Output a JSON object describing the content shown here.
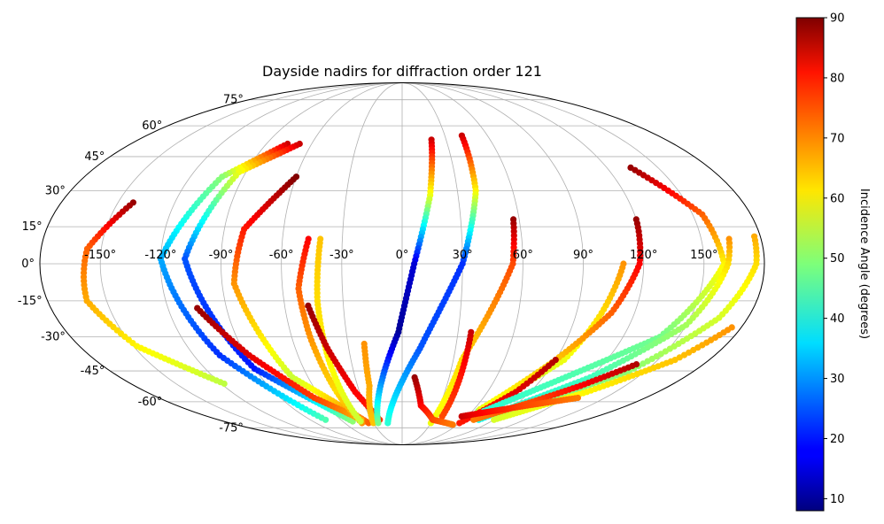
{
  "chart_data": {
    "type": "scatter",
    "projection": "mollweide",
    "title": "Dayside nadirs for diffraction order 121",
    "xlabel": "",
    "ylabel": "",
    "grid": true,
    "lon_ticks": [
      -150,
      -120,
      -90,
      -60,
      -30,
      0,
      30,
      60,
      90,
      120,
      150
    ],
    "lat_ticks": [
      -75,
      -60,
      -45,
      -30,
      -15,
      0,
      15,
      30,
      45,
      60,
      75
    ],
    "lon_tick_labels": [
      "-150°",
      "-120°",
      "-90°",
      "-60°",
      "-30°",
      "0°",
      "30°",
      "60°",
      "90°",
      "120°",
      "150°"
    ],
    "lat_tick_labels": [
      "-75°",
      "-60°",
      "-45°",
      "-30°",
      "-15°",
      "0°",
      "15°",
      "30°",
      "45°",
      "60°",
      "75°"
    ],
    "colormap": "jet",
    "colorbar": {
      "label": "Incidence Angle (degrees)",
      "range": [
        8,
        90
      ],
      "ticks": [
        10,
        20,
        30,
        40,
        50,
        60,
        70,
        80,
        90
      ],
      "tick_labels": [
        "10",
        "20",
        "30",
        "40",
        "50",
        "60",
        "70",
        "80",
        "90"
      ]
    },
    "tracks": [
      {
        "lon": [
          -142,
          -157,
          -160,
          -148,
          -118
        ],
        "lat": [
          25,
          6,
          -15,
          -34,
          -51
        ],
        "c": [
          88,
          72,
          66,
          60,
          54
        ]
      },
      {
        "lon": [
          -76,
          -102,
          -120,
          -105,
          -75
        ],
        "lat": [
          51,
          36,
          2,
          -38,
          -70
        ],
        "c": [
          84,
          50,
          32,
          22,
          45
        ]
      },
      {
        "lon": [
          -68,
          -94,
          -108,
          -90,
          -50
        ],
        "lat": [
          51,
          38,
          2,
          -44,
          -71
        ],
        "c": [
          84,
          58,
          25,
          20,
          50
        ]
      },
      {
        "lon": [
          -60,
          -80,
          -84,
          -70,
          -35
        ],
        "lat": [
          36,
          14,
          -8,
          -48,
          -72
        ],
        "c": [
          90,
          78,
          68,
          55,
          72
        ]
      },
      {
        "lon": [
          -105,
          -88,
          -65,
          -40
        ],
        "lat": [
          -18,
          -38,
          -58,
          -70
        ],
        "c": [
          88,
          82,
          75,
          65
        ]
      },
      {
        "lon": [
          -47,
          -52,
          -50,
          -46,
          -42
        ],
        "lat": [
          10,
          -10,
          -30,
          -55,
          -72
        ],
        "c": [
          80,
          72,
          68,
          62,
          68
        ]
      },
      {
        "lon": [
          -41,
          -43,
          -43,
          -42
        ],
        "lat": [
          10,
          -15,
          -40,
          -71
        ],
        "c": [
          64,
          62,
          60,
          55
        ]
      },
      {
        "lon": [
          -48,
          -42,
          -33,
          -22
        ],
        "lat": [
          -17,
          -35,
          -55,
          -70
        ],
        "c": [
          88,
          84,
          80,
          76
        ]
      },
      {
        "lon": [
          -21,
          -22,
          -30
        ],
        "lat": [
          -33,
          -52,
          -72
        ],
        "c": [
          68,
          66,
          64
        ]
      },
      {
        "lon": [
          20,
          15,
          6,
          -2,
          -25
        ],
        "lat": [
          53,
          28,
          0,
          -28,
          -72
        ],
        "c": [
          84,
          58,
          15,
          10,
          48
        ]
      },
      {
        "lon": [
          42,
          40,
          30,
          10,
          -15
        ],
        "lat": [
          55,
          30,
          0,
          -35,
          -72
        ],
        "c": [
          84,
          60,
          22,
          25,
          42
        ]
      },
      {
        "lon": [
          57,
          55,
          45,
          35,
          30
        ],
        "lat": [
          18,
          0,
          -20,
          -40,
          -72
        ],
        "c": [
          88,
          74,
          68,
          62,
          58
        ]
      },
      {
        "lon": [
          37,
          37,
          37
        ],
        "lat": [
          -28,
          -48,
          -68
        ],
        "c": [
          84,
          78,
          74
        ]
      },
      {
        "lon": [
          8,
          15,
          30,
          55
        ],
        "lat": [
          -48,
          -62,
          -70,
          -73
        ],
        "c": [
          88,
          80,
          74,
          70
        ]
      },
      {
        "lon": [
          110,
          103,
          95,
          65
        ],
        "lat": [
          0,
          -20,
          -40,
          -65
        ],
        "c": [
          68,
          62,
          58,
          52
        ]
      },
      {
        "lon": [
          120,
          118,
          108,
          90,
          65
        ],
        "lat": [
          18,
          0,
          -20,
          -40,
          -64
        ],
        "c": [
          88,
          80,
          72,
          64,
          58
        ]
      },
      {
        "lon": [
          90,
          80,
          60
        ],
        "lat": [
          -40,
          -55,
          -72
        ],
        "c": [
          86,
          82,
          78
        ]
      },
      {
        "lon": [
          134,
          155,
          160,
          140,
          70
        ],
        "lat": [
          40,
          20,
          0,
          -30,
          -65
        ],
        "c": [
          88,
          72,
          60,
          48,
          42
        ]
      },
      {
        "lon": [
          164,
          162,
          150,
          120,
          75
        ],
        "lat": [
          10,
          0,
          -25,
          -48,
          -70
        ],
        "c": [
          68,
          62,
          52,
          44,
          40
        ]
      },
      {
        "lon": [
          177,
          176,
          165,
          140,
          90
        ],
        "lat": [
          11,
          0,
          -22,
          -45,
          -68
        ],
        "c": [
          66,
          62,
          56,
          50,
          48
        ]
      },
      {
        "lon": [
          175,
          160,
          130,
          90
        ],
        "lat": [
          -26,
          -40,
          -55,
          -70
        ],
        "c": [
          68,
          64,
          60,
          56
        ]
      },
      {
        "lon": [
          140,
          120,
          100,
          70
        ],
        "lat": [
          -42,
          -52,
          -60,
          -70
        ],
        "c": [
          86,
          80,
          74,
          70
        ]
      },
      {
        "lon": [
          55,
          70,
          100,
          130
        ],
        "lat": [
          -68,
          -66,
          -62,
          -58
        ],
        "c": [
          84,
          80,
          74,
          70
        ]
      }
    ]
  }
}
